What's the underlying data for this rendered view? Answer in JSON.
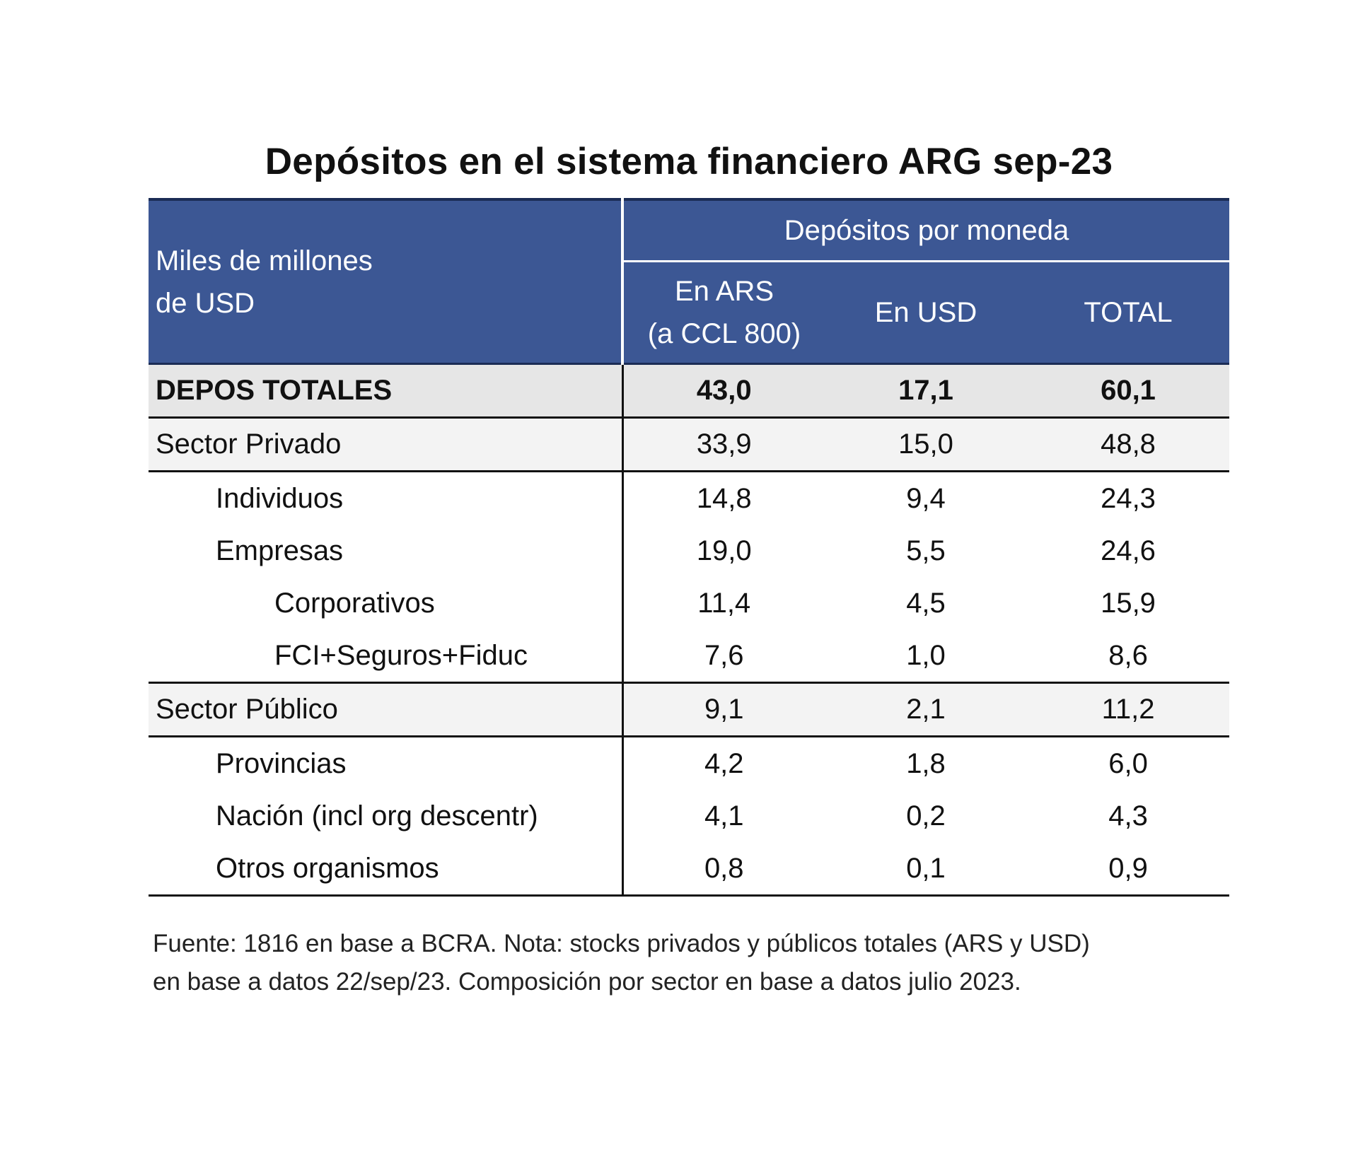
{
  "title": "Depósitos en el sistema financiero ARG sep-23",
  "header": {
    "unit_label_line1": "Miles de millones",
    "unit_label_line2": "de USD",
    "group_label": "Depósitos por moneda",
    "col_ars_line1": "En ARS",
    "col_ars_line2": "(a CCL 800)",
    "col_usd": "En USD",
    "col_total": "TOTAL"
  },
  "rows": [
    {
      "label": "DEPOS TOTALES",
      "ars": "43,0",
      "usd": "17,1",
      "total": "60,1"
    },
    {
      "label": "Sector Privado",
      "ars": "33,9",
      "usd": "15,0",
      "total": "48,8"
    },
    {
      "label": "Individuos",
      "ars": "14,8",
      "usd": "9,4",
      "total": "24,3"
    },
    {
      "label": "Empresas",
      "ars": "19,0",
      "usd": "5,5",
      "total": "24,6"
    },
    {
      "label": "Corporativos",
      "ars": "11,4",
      "usd": "4,5",
      "total": "15,9"
    },
    {
      "label": "FCI+Seguros+Fiduc",
      "ars": "7,6",
      "usd": "1,0",
      "total": "8,6"
    },
    {
      "label": "Sector Público",
      "ars": "9,1",
      "usd": "2,1",
      "total": "11,2"
    },
    {
      "label": "Provincias",
      "ars": "4,2",
      "usd": "1,8",
      "total": "6,0"
    },
    {
      "label": "Nación (incl org descentr)",
      "ars": "4,1",
      "usd": "0,2",
      "total": "4,3"
    },
    {
      "label": "Otros organismos",
      "ars": "0,8",
      "usd": "0,1",
      "total": "0,9"
    }
  ],
  "note": {
    "line1": "Fuente: 1816 en base a BCRA. Nota: stocks privados y públicos totales (ARS y USD)",
    "line2": "en base a datos 22/sep/23. Composición por sector en base a datos julio 2023."
  },
  "colors": {
    "header_bg": "#3c5794",
    "header_text": "#ffffff",
    "total_row_bg": "#e6e6e6",
    "sector_row_bg": "#f3f3f3"
  }
}
